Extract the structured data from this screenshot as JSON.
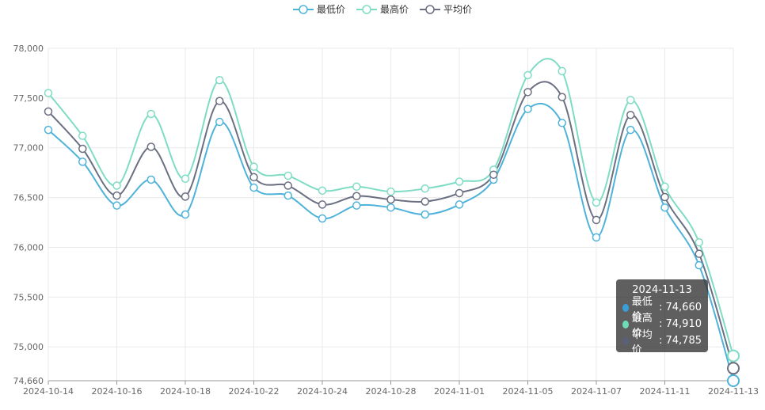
{
  "colors": {
    "min": "#4fb3d9",
    "max": "#7fdcc4",
    "avg": "#6b6f82",
    "grid": "#e9e9e9",
    "axis": "#666666"
  },
  "legend": [
    {
      "label": "最低价",
      "color": "#4fb3d9"
    },
    {
      "label": "最高价",
      "color": "#7fdcc4"
    },
    {
      "label": "平均价",
      "color": "#6b6f82"
    }
  ],
  "tooltip": {
    "title": "2024-11-13",
    "rows": [
      {
        "label": "最低价",
        "value": "74,660",
        "color": "#3a9fd8"
      },
      {
        "label": "最高价",
        "value": "74,910",
        "color": "#6edcb8"
      },
      {
        "label": "平均价",
        "value": "74,785",
        "color": "#5a5f7a"
      }
    ]
  },
  "chart_data": {
    "type": "line",
    "x": [
      "2024-10-14",
      "2024-10-15",
      "2024-10-16",
      "2024-10-17",
      "2024-10-18",
      "2024-10-21",
      "2024-10-22",
      "2024-10-23",
      "2024-10-24",
      "2024-10-25",
      "2024-10-28",
      "2024-10-29",
      "2024-11-01",
      "2024-11-04",
      "2024-11-05",
      "2024-11-06",
      "2024-11-07",
      "2024-11-08",
      "2024-11-11",
      "2024-11-12",
      "2024-11-13"
    ],
    "x_tick_labels": [
      "2024-10-14",
      "2024-10-16",
      "2024-10-18",
      "2024-10-22",
      "2024-10-24",
      "2024-10-28",
      "2024-11-01",
      "2024-11-05",
      "2024-11-07",
      "2024-11-11",
      "2024-11-13"
    ],
    "y_ticks": [
      "74,660",
      "75,000",
      "75,500",
      "76,000",
      "76,500",
      "77,000",
      "77,500",
      "78,000"
    ],
    "y_tick_values": [
      74660,
      75000,
      75500,
      76000,
      76500,
      77000,
      77500,
      78000
    ],
    "ylim": [
      74660,
      78000
    ],
    "grid": true,
    "legend_position": "top-center",
    "series": [
      {
        "name": "最低价",
        "values": [
          77180,
          76860,
          76420,
          76680,
          76330,
          77260,
          76600,
          76520,
          76290,
          76420,
          76400,
          76330,
          76430,
          76680,
          77390,
          77250,
          76100,
          77180,
          76400,
          75820,
          74660
        ]
      },
      {
        "name": "最高价",
        "values": [
          77550,
          77120,
          76620,
          77340,
          76690,
          77680,
          76810,
          76720,
          76570,
          76610,
          76560,
          76590,
          76660,
          76780,
          77730,
          77770,
          76450,
          77480,
          76610,
          76050,
          74910
        ]
      },
      {
        "name": "平均价",
        "values": [
          77365,
          76990,
          76520,
          77010,
          76510,
          77470,
          76705,
          76620,
          76430,
          76515,
          76480,
          76460,
          76545,
          76730,
          77560,
          77510,
          76275,
          77330,
          76505,
          75935,
          74785
        ]
      }
    ]
  }
}
